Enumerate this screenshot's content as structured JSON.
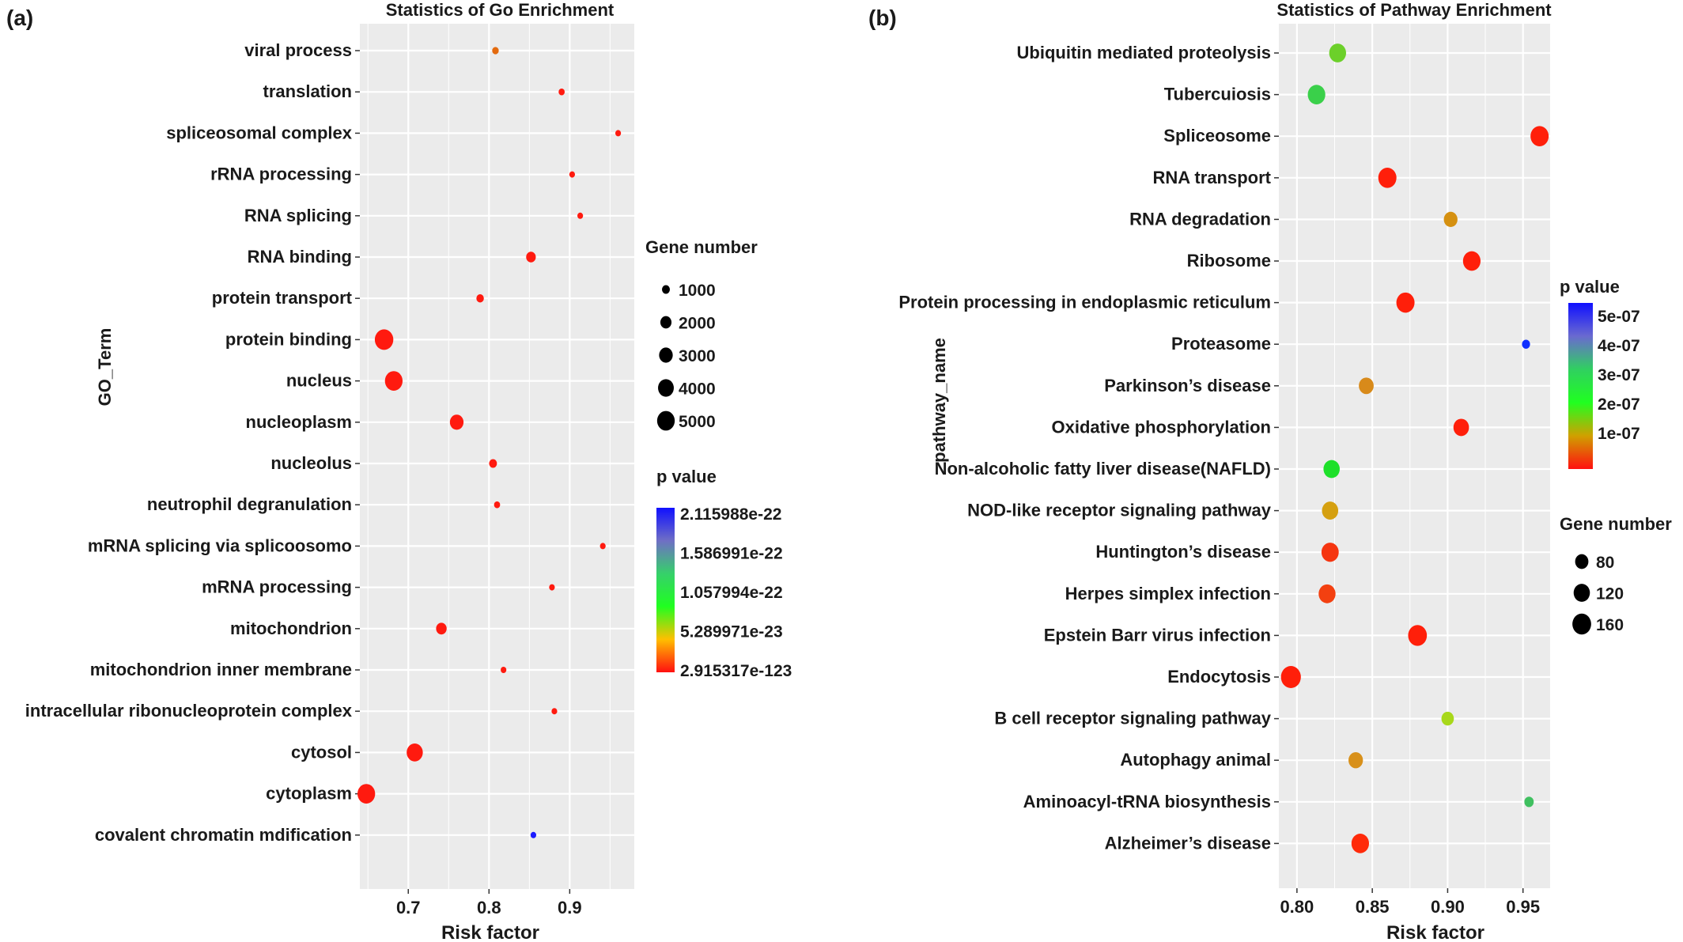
{
  "chart_data": [
    {
      "panel_label": "(a)",
      "type": "scatter",
      "title": "Statistics of Go Enrichment",
      "xlabel": "Risk factor",
      "ylabel": "GO_Term",
      "xlim": [
        0.64,
        0.98
      ],
      "x_ticks": [
        0.7,
        0.8,
        0.9
      ],
      "x_tick_labels": [
        "0.7",
        "0.8",
        "0.9"
      ],
      "grid": true,
      "categories": [
        "covalent chromatin mdification",
        "cytoplasm",
        "cytosol",
        "intracellular ribonucleoprotein complex",
        "mitochondrion inner membrane",
        "mitochondrion",
        "mRNA processing",
        "mRNA splicing via splicoosomo",
        "neutrophil degranulation",
        "nucleolus",
        "nucleoplasm",
        "nucleus",
        "protein binding",
        "protein transport",
        "RNA binding",
        "RNA splicing",
        "rRNA processing",
        "spliceosomal complex",
        "translation",
        "viral process"
      ],
      "points": [
        {
          "term": "covalent chromatin mdification",
          "x": 0.855,
          "gene_number": 220,
          "p_value": 2.1e-22,
          "color": "#1c1cff"
        },
        {
          "term": "cytoplasm",
          "x": 0.648,
          "gene_number": 5000,
          "p_value": 0,
          "color": "#ff1a0f"
        },
        {
          "term": "cytosol",
          "x": 0.708,
          "gene_number": 4200,
          "p_value": 0,
          "color": "#ff1a0f"
        },
        {
          "term": "intracellular ribonucleoprotein complex",
          "x": 0.881,
          "gene_number": 500,
          "p_value": 0,
          "color": "#ff1a0f"
        },
        {
          "term": "mitochondrion inner membrane",
          "x": 0.818,
          "gene_number": 450,
          "p_value": 0,
          "color": "#ff1a0f"
        },
        {
          "term": "mitochondrion",
          "x": 0.741,
          "gene_number": 1800,
          "p_value": 0,
          "color": "#ff1a0f"
        },
        {
          "term": "mRNA processing",
          "x": 0.878,
          "gene_number": 500,
          "p_value": 0,
          "color": "#ff1a0f"
        },
        {
          "term": "mRNA splicing via splicoosomo",
          "x": 0.941,
          "gene_number": 400,
          "p_value": 0,
          "color": "#ff1a0f"
        },
        {
          "term": "neutrophil degranulation",
          "x": 0.81,
          "gene_number": 600,
          "p_value": 0,
          "color": "#ff1a0f"
        },
        {
          "term": "nucleolus",
          "x": 0.805,
          "gene_number": 1000,
          "p_value": 0,
          "color": "#ff1a0f"
        },
        {
          "term": "nucleoplasm",
          "x": 0.76,
          "gene_number": 3000,
          "p_value": 0,
          "color": "#ff1a0f"
        },
        {
          "term": "nucleus",
          "x": 0.682,
          "gene_number": 5000,
          "p_value": 0,
          "color": "#ff1a0f"
        },
        {
          "term": "protein binding",
          "x": 0.67,
          "gene_number": 5500,
          "p_value": 0,
          "color": "#ff1a0f"
        },
        {
          "term": "protein transport",
          "x": 0.789,
          "gene_number": 900,
          "p_value": 0,
          "color": "#ff1a0f"
        },
        {
          "term": "RNA binding",
          "x": 0.852,
          "gene_number": 1500,
          "p_value": 0,
          "color": "#ff1a0f"
        },
        {
          "term": "RNA splicing",
          "x": 0.913,
          "gene_number": 450,
          "p_value": 0,
          "color": "#ff1a0f"
        },
        {
          "term": "rRNA processing",
          "x": 0.903,
          "gene_number": 450,
          "p_value": 0,
          "color": "#ff1a0f"
        },
        {
          "term": "spliceosomal complex",
          "x": 0.96,
          "gene_number": 200,
          "p_value": 0,
          "color": "#ff1a0f"
        },
        {
          "term": "translation",
          "x": 0.89,
          "gene_number": 600,
          "p_value": 0,
          "color": "#ff1a0f"
        },
        {
          "term": "viral process",
          "x": 0.808,
          "gene_number": 700,
          "p_value": 3e-23,
          "color": "#e36a0e"
        }
      ],
      "size_legend": {
        "title": "Gene number",
        "items": [
          {
            "label": "1000",
            "value": 1000
          },
          {
            "label": "2000",
            "value": 2000
          },
          {
            "label": "3000",
            "value": 3000
          },
          {
            "label": "4000",
            "value": 4000
          },
          {
            "label": "5000",
            "value": 5000
          }
        ]
      },
      "color_legend": {
        "title": "p value",
        "labels": [
          "2.115988e-22",
          "1.586991e-22",
          "1.057994e-22",
          "5.289971e-23",
          "2.915317e-123"
        ],
        "colors": [
          "#1010ff",
          "#6f6fc5",
          "#36d06a",
          "#20ff20",
          "#ffbf00",
          "#ff1010"
        ]
      }
    },
    {
      "panel_label": "(b)",
      "type": "scatter",
      "title": "Statistics of Pathway Enrichment",
      "xlabel": "Risk factor",
      "ylabel": "pathway_name",
      "xlim": [
        0.788,
        0.968
      ],
      "x_ticks": [
        0.8,
        0.85,
        0.9,
        0.95
      ],
      "x_tick_labels": [
        "0.80",
        "0.85",
        "0.90",
        "0.95"
      ],
      "grid": true,
      "categories": [
        "Alzheimer’s disease",
        "Aminoacyl-tRNA biosynthesis",
        "Autophagy animal",
        "B cell receptor signaling pathway",
        "Endocytosis",
        "Epstein Barr virus infection",
        "Herpes simplex infection",
        "Huntington’s disease",
        "NOD-like receptor signaling pathway",
        "Non-alcoholic fatty liver disease(NAFLD)",
        "Oxidative phosphorylation",
        "Parkinson’s disease",
        "Proteasome",
        "Protein processing in endoplasmic reticulum",
        "Ribosome",
        "RNA degradation",
        "RNA transport",
        "Spliceosome",
        "Tubercuiosis",
        "Ubiquitin mediated proteolysis"
      ],
      "points": [
        {
          "term": "Alzheimer’s disease",
          "x": 0.842,
          "gene_number": 140,
          "p_value": 1e-09,
          "color": "#ff2a0a"
        },
        {
          "term": "Aminoacyl-tRNA biosynthesis",
          "x": 0.954,
          "gene_number": 40,
          "p_value": 3e-07,
          "color": "#40c060"
        },
        {
          "term": "Autophagy animal",
          "x": 0.839,
          "gene_number": 95,
          "p_value": 1e-07,
          "color": "#d8901a"
        },
        {
          "term": "B cell receptor signaling pathway",
          "x": 0.9,
          "gene_number": 70,
          "p_value": 2e-07,
          "color": "#a8d81a"
        },
        {
          "term": "Endocytosis",
          "x": 0.796,
          "gene_number": 180,
          "p_value": 1e-09,
          "color": "#ff1f0a"
        },
        {
          "term": "Epstein Barr virus infection",
          "x": 0.88,
          "gene_number": 160,
          "p_value": 1e-09,
          "color": "#ff1f0a"
        },
        {
          "term": "Herpes simplex infection",
          "x": 0.82,
          "gene_number": 130,
          "p_value": 3e-08,
          "color": "#f34010"
        },
        {
          "term": "Huntington’s disease",
          "x": 0.822,
          "gene_number": 135,
          "p_value": 2e-08,
          "color": "#f53510"
        },
        {
          "term": "NOD-like receptor signaling pathway",
          "x": 0.822,
          "gene_number": 120,
          "p_value": 1.1e-07,
          "color": "#d5a010"
        },
        {
          "term": "Non-alcoholic fatty liver disease(NAFLD)",
          "x": 0.823,
          "gene_number": 120,
          "p_value": 2.5e-07,
          "color": "#1ee02a"
        },
        {
          "term": "Oxidative phosphorylation",
          "x": 0.909,
          "gene_number": 110,
          "p_value": 1e-09,
          "color": "#ff1f0a"
        },
        {
          "term": "Parkinson’s disease",
          "x": 0.846,
          "gene_number": 100,
          "p_value": 1e-07,
          "color": "#d88a1a"
        },
        {
          "term": "Proteasome",
          "x": 0.952,
          "gene_number": 30,
          "p_value": 5e-07,
          "color": "#1030ff"
        },
        {
          "term": "Protein processing in endoplasmic reticulum",
          "x": 0.872,
          "gene_number": 150,
          "p_value": 1e-09,
          "color": "#ff1f0a"
        },
        {
          "term": "Ribosome",
          "x": 0.916,
          "gene_number": 140,
          "p_value": 1e-09,
          "color": "#ff1f0a"
        },
        {
          "term": "RNA degradation",
          "x": 0.902,
          "gene_number": 85,
          "p_value": 9e-08,
          "color": "#d59010"
        },
        {
          "term": "RNA transport",
          "x": 0.86,
          "gene_number": 150,
          "p_value": 1e-09,
          "color": "#ff1f0a"
        },
        {
          "term": "Spliceosome",
          "x": 0.961,
          "gene_number": 150,
          "p_value": 1e-09,
          "color": "#ff1f0a"
        },
        {
          "term": "Tubercuiosis",
          "x": 0.813,
          "gene_number": 140,
          "p_value": 3e-07,
          "color": "#3ad04a"
        },
        {
          "term": "Ubiquitin mediated proteolysis",
          "x": 0.827,
          "gene_number": 130,
          "p_value": 2.5e-07,
          "color": "#6cd02a"
        }
      ],
      "color_legend": {
        "title": "p value",
        "labels": [
          "5e-07",
          "4e-07",
          "3e-07",
          "2e-07",
          "1e-07"
        ],
        "colors": [
          "#1010ff",
          "#6a6ad0",
          "#30d060",
          "#20ff20",
          "#d0a000",
          "#ff1010"
        ]
      },
      "size_legend": {
        "title": "Gene number",
        "items": [
          {
            "label": "80",
            "value": 80
          },
          {
            "label": "120",
            "value": 120
          },
          {
            "label": "160",
            "value": 160
          }
        ]
      }
    }
  ]
}
